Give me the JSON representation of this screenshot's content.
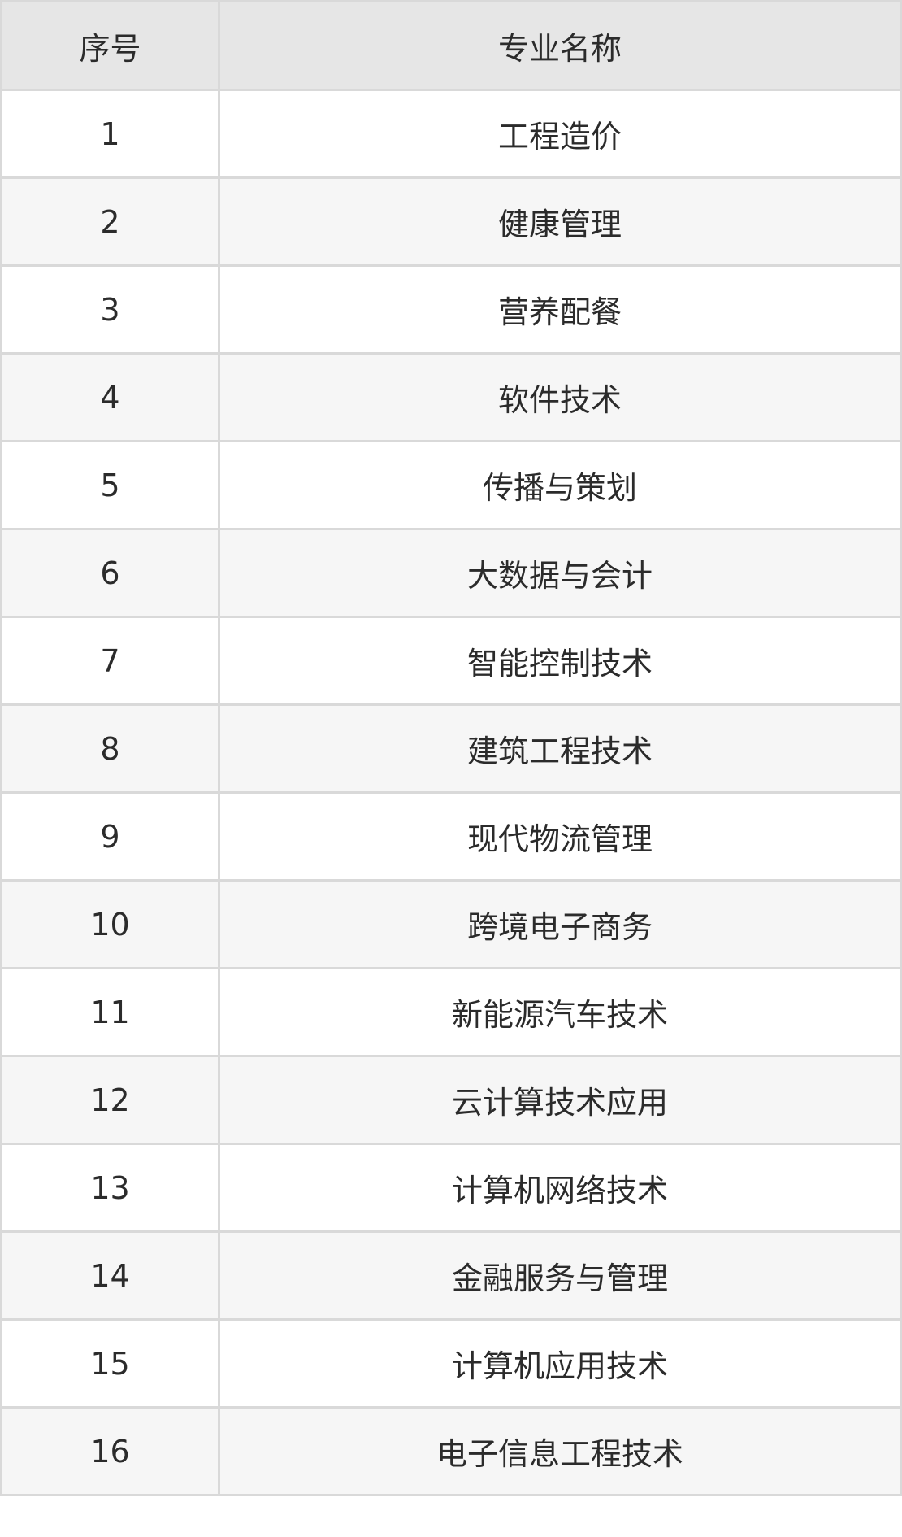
{
  "table": {
    "headers": [
      "序号",
      "专业名称"
    ],
    "rows": [
      [
        "1",
        "工程造价"
      ],
      [
        "2",
        "健康管理"
      ],
      [
        "3",
        "营养配餐"
      ],
      [
        "4",
        "软件技术"
      ],
      [
        "5",
        "传播与策划"
      ],
      [
        "6",
        "大数据与会计"
      ],
      [
        "7",
        "智能控制技术"
      ],
      [
        "8",
        "建筑工程技术"
      ],
      [
        "9",
        "现代物流管理"
      ],
      [
        "10",
        "跨境电子商务"
      ],
      [
        "11",
        "新能源汽车技术"
      ],
      [
        "12",
        "云计算技术应用"
      ],
      [
        "13",
        "计算机网络技术"
      ],
      [
        "14",
        "金融服务与管理"
      ],
      [
        "15",
        "计算机应用技术"
      ],
      [
        "16",
        "电子信息工程技术"
      ]
    ]
  },
  "colors": {
    "header_bg": "#e6e6e6",
    "row_alt_bg": "#f6f6f6",
    "border": "#d9d9d9",
    "text": "#2b2b2b"
  }
}
